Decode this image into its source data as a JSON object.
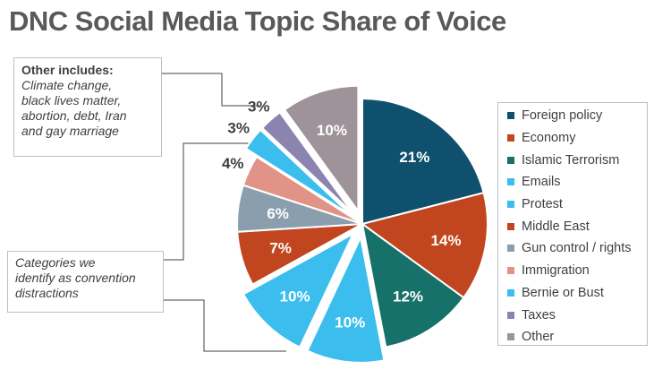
{
  "title": "DNC Social Media Topic Share of Voice",
  "chart_data": {
    "type": "pie",
    "title": "DNC Social Media Topic Share of Voice",
    "categories": [
      "Foreign policy",
      "Economy",
      "Islamic Terrorism",
      "Emails",
      "Protest",
      "Middle East",
      "Gun control / rights",
      "Immigration",
      "Bernie or Bust",
      "Taxes",
      "Other"
    ],
    "values": [
      21,
      14,
      12,
      10,
      10,
      7,
      6,
      4,
      3,
      3,
      10
    ],
    "labels": [
      "21%",
      "14%",
      "12%",
      "10%",
      "10%",
      "7%",
      "6%",
      "4%",
      "3%",
      "3%",
      "10%"
    ],
    "colors": [
      "#10506f",
      "#c1451e",
      "#157169",
      "#3bbdee",
      "#3bbdee",
      "#c1451e",
      "#8a9eae",
      "#e09386",
      "#3bbdee",
      "#8c84b0",
      "#9d9398"
    ],
    "exploded": [
      false,
      false,
      false,
      true,
      true,
      false,
      false,
      false,
      true,
      true,
      true
    ],
    "legend_position": "right"
  },
  "legend": {
    "items": [
      "Foreign policy",
      "Economy",
      "Islamic Terrorism",
      "Emails",
      "Protest",
      "Middle East",
      "Gun control / rights",
      "Immigration",
      "Bernie or Bust",
      "Taxes",
      "Other"
    ],
    "colors": [
      "#10506f",
      "#c1451e",
      "#157169",
      "#3bbdee",
      "#3bbdee",
      "#c1451e",
      "#8a9eae",
      "#e09386",
      "#3bbdee",
      "#8c84b0",
      "#9d9398"
    ]
  },
  "annotations": {
    "other_heading": "Other includes:",
    "other_lines": [
      "Climate change,",
      "black lives matter,",
      "abortion, debt, Iran",
      "and gay marriage"
    ],
    "distraction_lines": [
      "Categories we",
      "identify as convention",
      "distractions"
    ]
  }
}
